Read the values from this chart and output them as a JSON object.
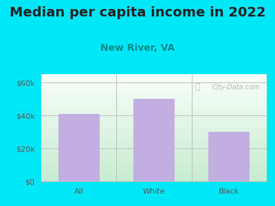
{
  "title": "Median per capita income in 2022",
  "subtitle": "New River, VA",
  "categories": [
    "All",
    "White",
    "Black"
  ],
  "values": [
    41000,
    50000,
    30000
  ],
  "bar_color": "#c2aee0",
  "title_color": "#222222",
  "subtitle_color": "#008B8B",
  "bg_color": "#00e8f8",
  "plot_bg_color_topleft": "#e8f5e9",
  "plot_bg_color_topright": "#f8f8ff",
  "plot_bg_color_bottomleft": "#d0edda",
  "plot_bg_color_bottomright": "#f0f0ff",
  "ylim": [
    0,
    65000
  ],
  "yticks": [
    0,
    20000,
    40000,
    60000
  ],
  "ytick_labels": [
    "$0",
    "$20k",
    "$40k",
    "$60k"
  ],
  "grid_color": "#bbbbbb",
  "watermark_text": "City-Data.com",
  "watermark_color": "#aaaaaa",
  "title_fontsize": 14,
  "subtitle_fontsize": 10,
  "tick_fontsize": 8,
  "ytick_color": "#555555",
  "xtick_color": "#555555"
}
